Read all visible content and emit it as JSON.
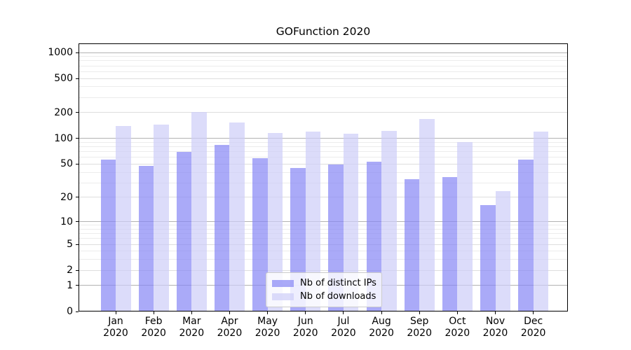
{
  "title": "GOFunction 2020",
  "chart_data": {
    "type": "bar",
    "title": "GOFunction 2020",
    "categories": [
      "Jan 2020",
      "Feb 2020",
      "Mar 2020",
      "Apr 2020",
      "May 2020",
      "Jun 2020",
      "Jul 2020",
      "Aug 2020",
      "Sep 2020",
      "Oct 2020",
      "Nov 2020",
      "Dec 2020"
    ],
    "series": [
      {
        "name": "Nb of distinct IPs",
        "key": "distinct-ips",
        "color": "#8686f5",
        "values": [
          56,
          48,
          69,
          84,
          59,
          45,
          49,
          53,
          33,
          35,
          16,
          57
        ]
      },
      {
        "name": "Nb of downloads",
        "key": "downloads",
        "color": "#cdcdf8",
        "values": [
          140,
          144,
          205,
          154,
          116,
          120,
          113,
          123,
          170,
          90,
          24,
          120
        ]
      }
    ],
    "xlabel": "",
    "ylabel": "",
    "y_axis": {
      "scale": "log1p",
      "tick_labels": [
        0,
        1,
        2,
        5,
        10,
        20,
        50,
        100,
        200,
        500,
        1000
      ],
      "minor_gridlines": [
        3,
        4,
        6,
        7,
        8,
        9,
        30,
        40,
        60,
        70,
        80,
        90,
        300,
        400,
        600,
        700,
        800,
        900
      ],
      "top_value": 1276
    },
    "grid": true,
    "legend_position": "inside-bottom-center"
  },
  "legend": {
    "items": [
      {
        "label": "Nb of distinct IPs"
      },
      {
        "label": "Nb of downloads"
      }
    ]
  },
  "style": {
    "bar_alpha": 0.7,
    "major_grid_color": "#b2b2b2",
    "labeled_grid_color": "#dedede",
    "minor_grid_color": "#ececec",
    "axis_color": "#000000",
    "legend_border_color": "#cccccc"
  }
}
